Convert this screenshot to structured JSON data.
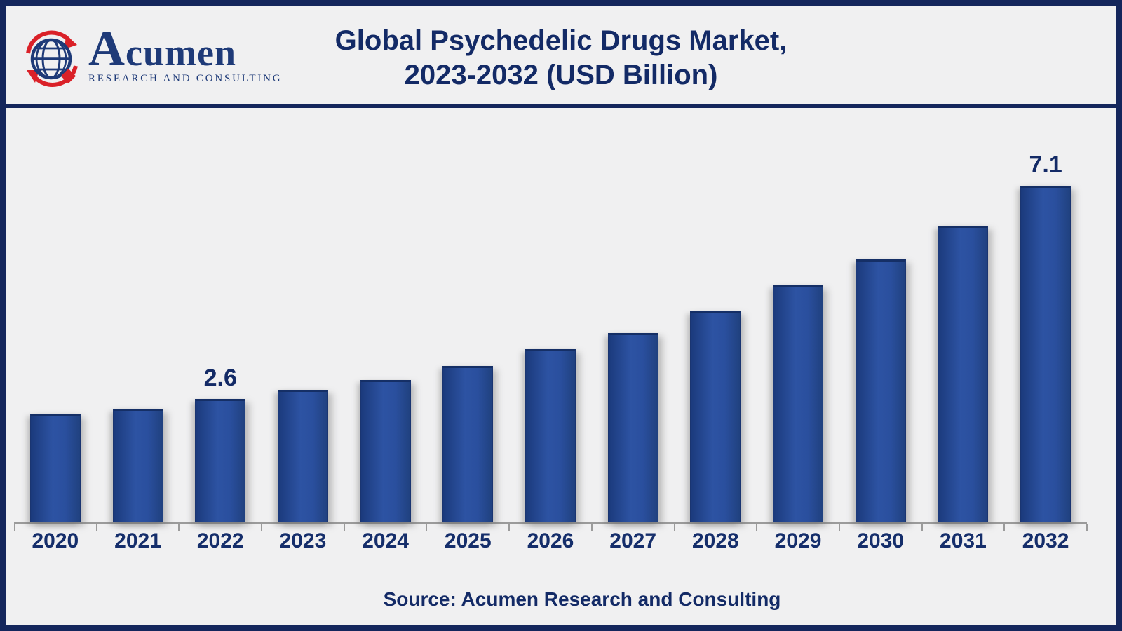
{
  "header": {
    "logo": {
      "name": "Acumen",
      "subtitle": "RESEARCH AND CONSULTING"
    },
    "title_line1": "Global Psychedelic Drugs Market,",
    "title_line2": "2023-2032 (USD Billion)"
  },
  "footer": {
    "source": "Source: Acumen Research and Consulting"
  },
  "chart_data": {
    "type": "bar",
    "title": "Global Psychedelic Drugs Market, 2023-2032 (USD Billion)",
    "unit": "USD Billion",
    "categories": [
      "2020",
      "2021",
      "2022",
      "2023",
      "2024",
      "2025",
      "2026",
      "2027",
      "2028",
      "2029",
      "2030",
      "2031",
      "2032"
    ],
    "values": [
      2.3,
      2.4,
      2.6,
      2.8,
      3.0,
      3.3,
      3.65,
      4.0,
      4.45,
      5.0,
      5.55,
      6.25,
      7.1
    ],
    "data_labels": {
      "2022": "2.6",
      "2032": "7.1"
    },
    "ylim": [
      0,
      7.5
    ],
    "grid": "off",
    "legend": "none",
    "bar_gradient": [
      "#1b3a7c",
      "#2d53a3",
      "#20417f"
    ],
    "axis_color": "#9b9b9b",
    "label_color": "#132a66"
  },
  "colors": {
    "background": "#f0f0f1",
    "frame_border": "#14265c",
    "text_navy": "#132a66",
    "logo_navy": "#1e3a78",
    "logo_red": "#da2128"
  }
}
